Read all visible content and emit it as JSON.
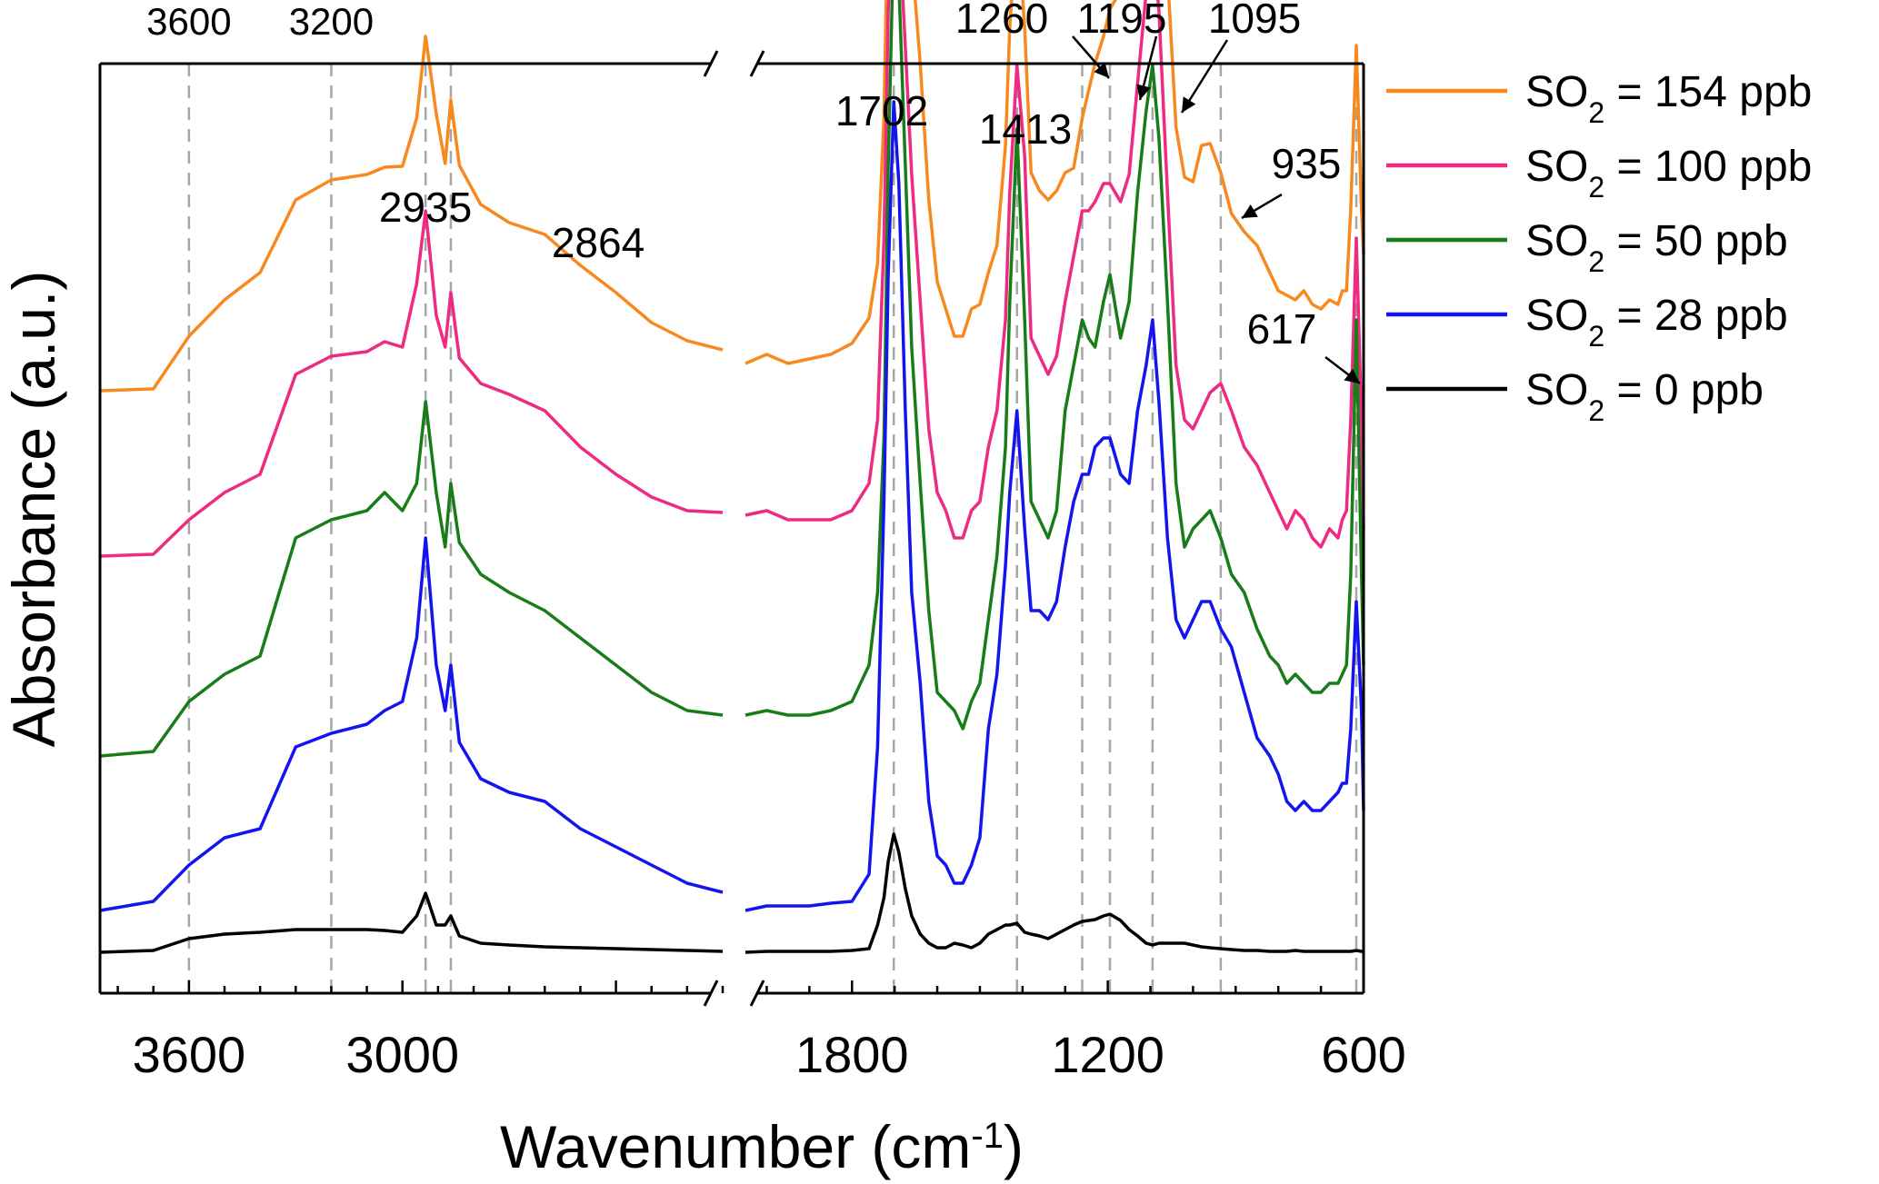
{
  "chart_data": {
    "type": "line",
    "xlabel": "Wavenumber (cm-1)",
    "xlabel_main": "Wavenumber (cm",
    "xlabel_sup": "-1",
    "xlabel_close": ")",
    "ylabel": "Absorbance (a.u.)",
    "x_axis": {
      "reversed": true,
      "broken": true,
      "segments": [
        {
          "range": [
            3850,
            2100
          ],
          "ticks": [
            3600,
            3000
          ]
        },
        {
          "range": [
            2050,
            600
          ],
          "ticks": [
            1800,
            1200,
            600
          ]
        }
      ],
      "tick_labels": [
        "3600",
        "3000",
        "1800",
        "1200",
        "600"
      ]
    },
    "top_labels": [
      "3600",
      "3200"
    ],
    "reference_lines": [
      3600,
      3200,
      2935,
      2864,
      1702,
      1413,
      1260,
      1195,
      1095,
      935,
      617
    ],
    "peak_labels": [
      "1260",
      "1195",
      "1095",
      "1702",
      "1413",
      "2935",
      "2864",
      "935",
      "617"
    ],
    "legend": [
      {
        "prefix": "SO",
        "sub": "2",
        "suffix": " = 154 ppb",
        "color": "#f7891f"
      },
      {
        "prefix": "SO",
        "sub": "2",
        "suffix": " = 100 ppb",
        "color": "#ee2a82"
      },
      {
        "prefix": "SO",
        "sub": "2",
        "suffix": " = 50 ppb",
        "color": "#187d18"
      },
      {
        "prefix": "SO",
        "sub": "2",
        "suffix": " = 28 ppb",
        "color": "#1414f0"
      },
      {
        "prefix": "SO",
        "sub": "2",
        "suffix": " = 0 ppb",
        "color": "#000000"
      }
    ],
    "legend_position": "right",
    "grid": false,
    "series": [
      {
        "name": "SO2 = 154 ppb",
        "color": "#f7891f",
        "high_x": [
          3850,
          3700,
          3600,
          3500,
          3400,
          3300,
          3200,
          3100,
          3050,
          3000,
          2960,
          2935,
          2905,
          2880,
          2864,
          2840,
          2780,
          2700,
          2600,
          2500,
          2400,
          2300,
          2200,
          2100
        ],
        "high_y": [
          0.0,
          0.002,
          0.06,
          0.1,
          0.13,
          0.21,
          0.232,
          0.238,
          0.246,
          0.247,
          0.3,
          0.39,
          0.305,
          0.25,
          0.32,
          0.248,
          0.205,
          0.185,
          0.172,
          0.138,
          0.108,
          0.075,
          0.055,
          0.045
        ],
        "low_x": [
          2050,
          2000,
          1950,
          1900,
          1850,
          1800,
          1760,
          1740,
          1725,
          1715,
          1702,
          1690,
          1675,
          1660,
          1640,
          1620,
          1600,
          1580,
          1560,
          1540,
          1520,
          1500,
          1480,
          1460,
          1440,
          1430,
          1413,
          1395,
          1380,
          1360,
          1340,
          1320,
          1300,
          1280,
          1260,
          1245,
          1230,
          1210,
          1195,
          1170,
          1150,
          1130,
          1110,
          1095,
          1080,
          1060,
          1040,
          1020,
          1000,
          980,
          960,
          935,
          910,
          880,
          850,
          820,
          800,
          780,
          760,
          740,
          720,
          700,
          680,
          660,
          650,
          640,
          630,
          617,
          605,
          600
        ],
        "low_y": [
          0.03,
          0.04,
          0.03,
          0.035,
          0.04,
          0.052,
          0.08,
          0.14,
          0.3,
          0.55,
          0.77,
          0.72,
          0.6,
          0.48,
          0.36,
          0.21,
          0.12,
          0.09,
          0.06,
          0.06,
          0.09,
          0.095,
          0.13,
          0.16,
          0.27,
          0.4,
          0.52,
          0.4,
          0.24,
          0.22,
          0.21,
          0.22,
          0.24,
          0.245,
          0.3,
          0.33,
          0.36,
          0.39,
          0.42,
          0.44,
          0.45,
          0.51,
          0.58,
          0.63,
          0.58,
          0.46,
          0.29,
          0.235,
          0.23,
          0.27,
          0.272,
          0.24,
          0.195,
          0.175,
          0.16,
          0.13,
          0.11,
          0.105,
          0.1,
          0.11,
          0.095,
          0.09,
          0.1,
          0.095,
          0.11,
          0.11,
          0.2,
          0.38,
          0.2,
          0.15
        ]
      },
      {
        "name": "SO2 = 100 ppb",
        "color": "#ee2a82",
        "high_x": [
          3850,
          3700,
          3600,
          3500,
          3400,
          3300,
          3200,
          3100,
          3050,
          3000,
          2960,
          2935,
          2905,
          2880,
          2864,
          2840,
          2780,
          2700,
          2600,
          2500,
          2400,
          2300,
          2200,
          2100
        ],
        "high_y": [
          0.0,
          0.002,
          0.04,
          0.07,
          0.09,
          0.2,
          0.22,
          0.225,
          0.236,
          0.23,
          0.3,
          0.38,
          0.265,
          0.23,
          0.29,
          0.218,
          0.19,
          0.178,
          0.16,
          0.12,
          0.09,
          0.065,
          0.05,
          0.048
        ],
        "low_x": [
          2050,
          2000,
          1950,
          1900,
          1850,
          1800,
          1760,
          1740,
          1725,
          1715,
          1702,
          1690,
          1675,
          1660,
          1640,
          1620,
          1600,
          1580,
          1560,
          1540,
          1520,
          1500,
          1480,
          1460,
          1440,
          1430,
          1413,
          1395,
          1380,
          1360,
          1340,
          1320,
          1300,
          1280,
          1260,
          1245,
          1230,
          1210,
          1195,
          1170,
          1150,
          1130,
          1110,
          1095,
          1080,
          1060,
          1040,
          1020,
          1000,
          980,
          960,
          935,
          910,
          880,
          850,
          820,
          800,
          780,
          760,
          740,
          720,
          700,
          680,
          660,
          650,
          640,
          630,
          617,
          605,
          600
        ],
        "low_y": [
          0.045,
          0.05,
          0.04,
          0.04,
          0.04,
          0.05,
          0.08,
          0.15,
          0.35,
          0.6,
          0.76,
          0.7,
          0.56,
          0.42,
          0.28,
          0.14,
          0.07,
          0.05,
          0.02,
          0.02,
          0.05,
          0.06,
          0.12,
          0.16,
          0.26,
          0.4,
          0.54,
          0.44,
          0.24,
          0.22,
          0.2,
          0.22,
          0.28,
          0.33,
          0.38,
          0.38,
          0.39,
          0.41,
          0.41,
          0.39,
          0.42,
          0.52,
          0.62,
          0.68,
          0.6,
          0.4,
          0.21,
          0.15,
          0.14,
          0.16,
          0.18,
          0.19,
          0.16,
          0.12,
          0.1,
          0.07,
          0.05,
          0.03,
          0.05,
          0.04,
          0.02,
          0.01,
          0.03,
          0.02,
          0.04,
          0.05,
          0.15,
          0.35,
          0.15,
          0.03
        ]
      },
      {
        "name": "SO2 = 50 ppb",
        "color": "#187d18",
        "high_x": [
          3850,
          3700,
          3600,
          3500,
          3400,
          3300,
          3200,
          3100,
          3050,
          3000,
          2960,
          2935,
          2905,
          2880,
          2864,
          2840,
          2780,
          2700,
          2600,
          2500,
          2400,
          2300,
          2200,
          2100
        ],
        "high_y": [
          0.0,
          0.005,
          0.06,
          0.09,
          0.11,
          0.24,
          0.26,
          0.27,
          0.29,
          0.27,
          0.3,
          0.39,
          0.29,
          0.23,
          0.3,
          0.235,
          0.2,
          0.18,
          0.16,
          0.13,
          0.1,
          0.07,
          0.05,
          0.045
        ],
        "low_x": [
          2050,
          2000,
          1950,
          1900,
          1850,
          1800,
          1760,
          1740,
          1725,
          1715,
          1702,
          1690,
          1675,
          1660,
          1640,
          1620,
          1600,
          1580,
          1560,
          1540,
          1520,
          1500,
          1480,
          1460,
          1440,
          1430,
          1413,
          1395,
          1380,
          1360,
          1340,
          1320,
          1300,
          1280,
          1260,
          1245,
          1230,
          1210,
          1195,
          1170,
          1150,
          1130,
          1110,
          1095,
          1080,
          1060,
          1040,
          1020,
          1000,
          980,
          960,
          935,
          910,
          880,
          850,
          820,
          800,
          780,
          760,
          740,
          720,
          700,
          680,
          660,
          650,
          640,
          630,
          617,
          605,
          600
        ],
        "low_y": [
          0.045,
          0.05,
          0.045,
          0.045,
          0.05,
          0.06,
          0.1,
          0.18,
          0.35,
          0.65,
          0.91,
          0.85,
          0.65,
          0.45,
          0.3,
          0.16,
          0.07,
          0.06,
          0.05,
          0.03,
          0.06,
          0.08,
          0.15,
          0.22,
          0.34,
          0.5,
          0.69,
          0.48,
          0.28,
          0.26,
          0.24,
          0.27,
          0.38,
          0.43,
          0.48,
          0.46,
          0.45,
          0.5,
          0.53,
          0.46,
          0.5,
          0.62,
          0.71,
          0.76,
          0.68,
          0.5,
          0.3,
          0.23,
          0.25,
          0.26,
          0.27,
          0.24,
          0.2,
          0.18,
          0.14,
          0.11,
          0.1,
          0.08,
          0.09,
          0.08,
          0.07,
          0.07,
          0.08,
          0.08,
          0.09,
          0.1,
          0.2,
          0.48,
          0.2,
          0.1
        ]
      },
      {
        "name": "SO2 = 28 ppb",
        "color": "#1414f0",
        "high_x": [
          3850,
          3700,
          3600,
          3500,
          3400,
          3300,
          3200,
          3100,
          3050,
          3000,
          2960,
          2935,
          2905,
          2880,
          2864,
          2840,
          2780,
          2700,
          2600,
          2500,
          2400,
          2300,
          2200,
          2100
        ],
        "high_y": [
          0.0,
          0.01,
          0.05,
          0.08,
          0.09,
          0.18,
          0.195,
          0.205,
          0.22,
          0.23,
          0.3,
          0.41,
          0.27,
          0.22,
          0.27,
          0.185,
          0.145,
          0.13,
          0.12,
          0.09,
          0.07,
          0.05,
          0.03,
          0.02
        ],
        "low_x": [
          2050,
          2000,
          1950,
          1900,
          1850,
          1800,
          1760,
          1740,
          1725,
          1715,
          1702,
          1690,
          1675,
          1660,
          1640,
          1620,
          1600,
          1580,
          1560,
          1540,
          1520,
          1500,
          1480,
          1460,
          1440,
          1430,
          1413,
          1395,
          1380,
          1360,
          1340,
          1320,
          1300,
          1280,
          1260,
          1245,
          1230,
          1210,
          1195,
          1170,
          1150,
          1130,
          1110,
          1095,
          1080,
          1060,
          1040,
          1020,
          1000,
          980,
          960,
          935,
          910,
          880,
          850,
          820,
          800,
          780,
          760,
          740,
          720,
          700,
          680,
          660,
          650,
          640,
          630,
          617,
          605,
          600
        ],
        "low_y": [
          0.0,
          0.005,
          0.005,
          0.005,
          0.008,
          0.01,
          0.04,
          0.18,
          0.45,
          0.7,
          0.89,
          0.8,
          0.55,
          0.35,
          0.25,
          0.12,
          0.06,
          0.05,
          0.03,
          0.03,
          0.05,
          0.08,
          0.2,
          0.26,
          0.38,
          0.46,
          0.55,
          0.42,
          0.33,
          0.33,
          0.32,
          0.34,
          0.4,
          0.45,
          0.48,
          0.48,
          0.51,
          0.52,
          0.52,
          0.48,
          0.47,
          0.55,
          0.6,
          0.65,
          0.56,
          0.41,
          0.32,
          0.3,
          0.32,
          0.34,
          0.34,
          0.31,
          0.29,
          0.24,
          0.19,
          0.17,
          0.15,
          0.12,
          0.11,
          0.12,
          0.11,
          0.11,
          0.12,
          0.13,
          0.14,
          0.14,
          0.2,
          0.34,
          0.22,
          0.11
        ]
      },
      {
        "name": "SO2 = 0 ppb",
        "color": "#000000",
        "high_x": [
          3850,
          3700,
          3600,
          3500,
          3400,
          3300,
          3200,
          3100,
          3050,
          3000,
          2960,
          2935,
          2905,
          2880,
          2864,
          2840,
          2780,
          2700,
          2600,
          2500,
          2400,
          2300,
          2200,
          2100
        ],
        "high_y": [
          0.0,
          0.002,
          0.015,
          0.02,
          0.022,
          0.025,
          0.025,
          0.025,
          0.024,
          0.022,
          0.04,
          0.065,
          0.03,
          0.03,
          0.04,
          0.018,
          0.01,
          0.008,
          0.006,
          0.005,
          0.004,
          0.003,
          0.002,
          0.001
        ],
        "low_x": [
          2050,
          2000,
          1950,
          1900,
          1850,
          1800,
          1760,
          1740,
          1725,
          1715,
          1702,
          1690,
          1675,
          1660,
          1640,
          1620,
          1600,
          1580,
          1560,
          1540,
          1520,
          1500,
          1480,
          1460,
          1440,
          1430,
          1413,
          1395,
          1380,
          1360,
          1340,
          1320,
          1300,
          1280,
          1260,
          1245,
          1230,
          1210,
          1195,
          1170,
          1150,
          1130,
          1110,
          1095,
          1080,
          1060,
          1040,
          1020,
          1000,
          980,
          960,
          935,
          910,
          880,
          850,
          820,
          800,
          780,
          760,
          740,
          720,
          700,
          680,
          660,
          650,
          640,
          630,
          617,
          605,
          600
        ],
        "low_y": [
          0.0,
          0.001,
          0.001,
          0.001,
          0.001,
          0.002,
          0.004,
          0.03,
          0.06,
          0.1,
          0.13,
          0.11,
          0.07,
          0.04,
          0.02,
          0.01,
          0.005,
          0.005,
          0.01,
          0.008,
          0.005,
          0.01,
          0.02,
          0.025,
          0.03,
          0.03,
          0.032,
          0.022,
          0.02,
          0.018,
          0.015,
          0.02,
          0.025,
          0.03,
          0.034,
          0.035,
          0.036,
          0.04,
          0.042,
          0.035,
          0.025,
          0.018,
          0.01,
          0.008,
          0.01,
          0.01,
          0.01,
          0.01,
          0.008,
          0.006,
          0.005,
          0.004,
          0.003,
          0.002,
          0.002,
          0.001,
          0.001,
          0.001,
          0.002,
          0.001,
          0.001,
          0.001,
          0.001,
          0.001,
          0.001,
          0.001,
          0.001,
          0.002,
          0.001,
          0.001
        ]
      }
    ]
  }
}
